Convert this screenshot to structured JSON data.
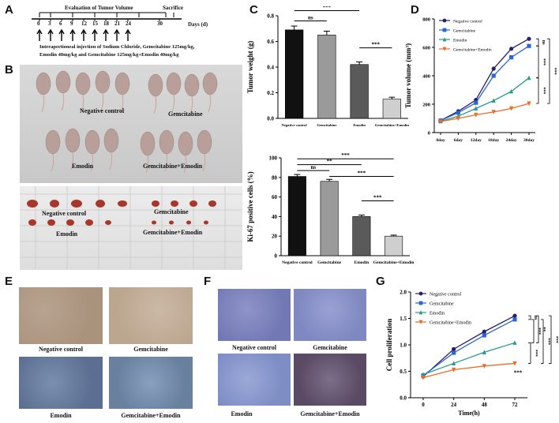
{
  "panels": {
    "A": "A",
    "B": "B",
    "C": "C",
    "D": "D",
    "E": "E",
    "F": "F",
    "G": "G"
  },
  "timeline": {
    "eval_label": "Evaluation of Tumor Volume",
    "sacrifice_label": "Sacrifice",
    "days": [
      "0",
      "3",
      "6",
      "9",
      "12",
      "15",
      "18",
      "21",
      "24",
      "30"
    ],
    "days_unit": "Days (d)",
    "injection_line1": "Interapertioneal injection of Sodium Chloride, Gemcitabine 125mg/kg,",
    "injection_line2": "Emodin 40mg/kg and Gemcitabine 125mg/kg+Emodin 40mg/kg"
  },
  "mice_photo": {
    "labels": [
      "Negative control",
      "Gemcitabine",
      "Emodin",
      "Gemcitabine+Emodin"
    ],
    "tumor_labels": [
      "Negative control",
      "Gemcitabine",
      "Emodin",
      "Gemcitabine+Emodin"
    ]
  },
  "ihc_E": {
    "labels": [
      "Negative control",
      "Gemcitabine",
      "Emodin",
      "Gemcitabine+Emodin"
    ]
  },
  "ihc_F": {
    "labels": [
      "Negative control",
      "Gemcitabine",
      "Emodin",
      "Gemcitabine+Emodin"
    ]
  },
  "colors": {
    "navy": "#2b1d6b",
    "blue": "#2a66d8",
    "teal": "#2a9a8c",
    "orange": "#ef6a24",
    "black_bar": "#111111",
    "gray_bar": "#9a9a9a",
    "dark_gray_bar": "#5a5a5a",
    "light_gray_bar": "#cfcfcf"
  },
  "chart_data": [
    {
      "id": "C_top",
      "type": "bar",
      "ylabel": "Tumor weight (g)",
      "categories": [
        "Negative control",
        "Gemcitabine",
        "Emodin",
        "Gemcitabine+Emodin"
      ],
      "values": [
        0.69,
        0.65,
        0.42,
        0.15
      ],
      "errors": [
        0.03,
        0.03,
        0.02,
        0.015
      ],
      "ylim": [
        0,
        0.8
      ],
      "yticks": [
        "0.0",
        "0.2",
        "0.4",
        "0.6",
        "0.8"
      ],
      "significance": [
        "ns",
        "***",
        "***",
        "***"
      ]
    },
    {
      "id": "C_bottom",
      "type": "bar",
      "ylabel": "Ki-67 positive cells (%)",
      "categories": [
        "Negative control",
        "Gemcitabine",
        "Emodin",
        "Gemcitabine+Emodin"
      ],
      "values": [
        81,
        76,
        40,
        20
      ],
      "errors": [
        2,
        2,
        1.5,
        1
      ],
      "ylim": [
        0,
        100
      ],
      "yticks": [
        "0",
        "20",
        "40",
        "60",
        "80",
        "100"
      ],
      "significance": [
        "ns",
        "**",
        "***",
        "***",
        "***"
      ]
    },
    {
      "id": "D",
      "type": "line",
      "ylabel": "Tumor volume (mm³)",
      "x": [
        "0day",
        "6day",
        "12day",
        "18day",
        "24day",
        "30day"
      ],
      "ylim": [
        0,
        800
      ],
      "yticks": [
        "0",
        "200",
        "400",
        "600",
        "800"
      ],
      "series": [
        {
          "name": "Negative control",
          "values": [
            85,
            150,
            230,
            450,
            590,
            660
          ]
        },
        {
          "name": "Gemcitabine",
          "values": [
            85,
            140,
            210,
            400,
            530,
            610
          ]
        },
        {
          "name": "Emodin",
          "values": [
            80,
            115,
            170,
            225,
            290,
            385
          ]
        },
        {
          "name": "Gemcitabine+Emodin",
          "values": [
            78,
            100,
            125,
            145,
            170,
            205
          ]
        }
      ],
      "significance": [
        "ns",
        "***",
        "***",
        "***"
      ]
    },
    {
      "id": "G",
      "type": "line",
      "ylabel": "Cell proliferation",
      "xlabel": "Time(h)",
      "x": [
        "0",
        "24",
        "48",
        "72"
      ],
      "ylim": [
        0,
        2.0
      ],
      "yticks": [
        "0.0",
        "0.5",
        "1.0",
        "1.5",
        "2.0"
      ],
      "series": [
        {
          "name": "Negative control",
          "values": [
            0.4,
            0.92,
            1.25,
            1.55
          ]
        },
        {
          "name": "Gemcitabine",
          "values": [
            0.42,
            0.85,
            1.18,
            1.48
          ]
        },
        {
          "name": "Emodin",
          "values": [
            0.44,
            0.65,
            0.86,
            1.04
          ]
        },
        {
          "name": "Gemcitabine+Emodin",
          "values": [
            0.38,
            0.53,
            0.6,
            0.65
          ]
        }
      ],
      "significance": [
        "ns",
        "**",
        "***",
        "***",
        "***",
        "***"
      ]
    }
  ]
}
